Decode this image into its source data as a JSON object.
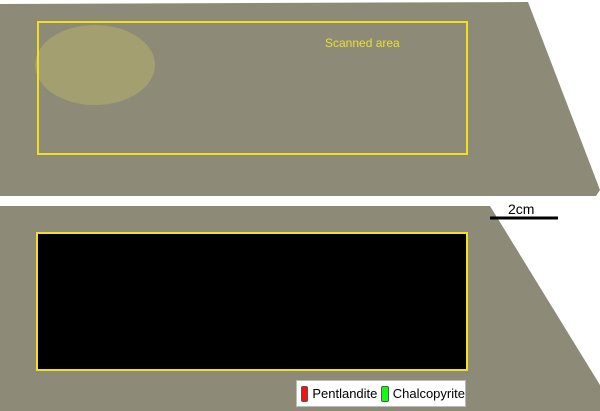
{
  "top_panel": {
    "annotation": "Scanned area",
    "highlight_color": "#f0e020"
  },
  "scale_bar": {
    "label": "2cm"
  },
  "bottom_panel": {
    "legend": [
      {
        "label": "Pentlandite",
        "color": "#ff1010"
      },
      {
        "label": "Chalcopyrite",
        "color": "#10ff10"
      }
    ]
  },
  "colors": {
    "rock": "#8e8a78",
    "mineral_dark": "#23262e",
    "map_background": "#000000"
  }
}
